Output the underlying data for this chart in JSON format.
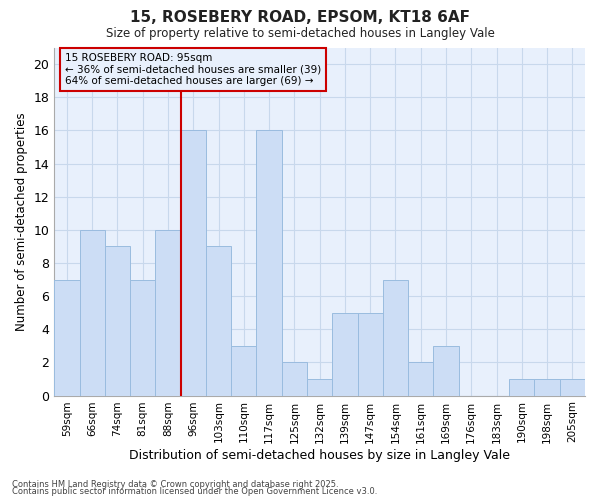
{
  "title1": "15, ROSEBERY ROAD, EPSOM, KT18 6AF",
  "title2": "Size of property relative to semi-detached houses in Langley Vale",
  "xlabel": "Distribution of semi-detached houses by size in Langley Vale",
  "ylabel": "Number of semi-detached properties",
  "categories": [
    "59sqm",
    "66sqm",
    "74sqm",
    "81sqm",
    "88sqm",
    "96sqm",
    "103sqm",
    "110sqm",
    "117sqm",
    "125sqm",
    "132sqm",
    "139sqm",
    "147sqm",
    "154sqm",
    "161sqm",
    "169sqm",
    "176sqm",
    "183sqm",
    "190sqm",
    "198sqm",
    "205sqm"
  ],
  "values": [
    7,
    10,
    9,
    7,
    10,
    16,
    9,
    3,
    16,
    2,
    1,
    5,
    5,
    7,
    2,
    3,
    0,
    0,
    1,
    1,
    1
  ],
  "bar_color": "#ccddf5",
  "bar_edge_color": "#9abcdf",
  "grid_color": "#c8d8ec",
  "vline_x_idx": 5,
  "vline_color": "#cc0000",
  "annotation_title": "15 ROSEBERY ROAD: 95sqm",
  "annotation_line1": "← 36% of semi-detached houses are smaller (39)",
  "annotation_line2": "64% of semi-detached houses are larger (69) →",
  "annotation_box_color": "#cc0000",
  "footnote1": "Contains HM Land Registry data © Crown copyright and database right 2025.",
  "footnote2": "Contains public sector information licensed under the Open Government Licence v3.0.",
  "ylim": [
    0,
    21
  ],
  "yticks": [
    0,
    2,
    4,
    6,
    8,
    10,
    12,
    14,
    16,
    18,
    20
  ],
  "bg_color": "#ffffff",
  "plot_bg_color": "#e8f0fc"
}
